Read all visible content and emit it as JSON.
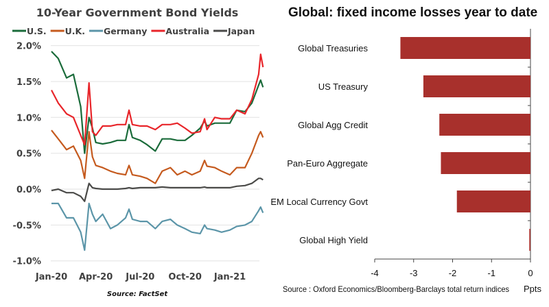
{
  "chart_data": [
    {
      "type": "line",
      "title": "10-Year Government Bond Yields",
      "source": "Source: FactSet",
      "ylim": [
        -1.0,
        2.0
      ],
      "yticks": [
        "2.0%",
        "1.5%",
        "1.0%",
        "0.5%",
        "0.0%",
        "-0.5%",
        "-1.0%"
      ],
      "ytick_values": [
        2.0,
        1.5,
        1.0,
        0.5,
        0.0,
        -0.5,
        -1.0
      ],
      "xticks": [
        "Jan-20",
        "Apr-20",
        "Jul-20",
        "Oct-20",
        "Jan-21"
      ],
      "xtick_values": [
        "2020-01-01",
        "2020-04-01",
        "2020-07-01",
        "2020-10-01",
        "2021-01-01"
      ],
      "grid": true,
      "legend": "top",
      "x": [
        "2020-01-01",
        "2020-01-15",
        "2020-02-01",
        "2020-02-15",
        "2020-03-01",
        "2020-03-09",
        "2020-03-18",
        "2020-03-25",
        "2020-04-01",
        "2020-04-15",
        "2020-05-01",
        "2020-05-15",
        "2020-06-01",
        "2020-06-08",
        "2020-06-15",
        "2020-07-01",
        "2020-07-15",
        "2020-08-01",
        "2020-08-15",
        "2020-09-01",
        "2020-09-15",
        "2020-10-01",
        "2020-10-15",
        "2020-11-01",
        "2020-11-10",
        "2020-11-15",
        "2020-12-01",
        "2020-12-15",
        "2021-01-01",
        "2021-01-15",
        "2021-02-01",
        "2021-02-15",
        "2021-03-01",
        "2021-03-05",
        "2021-03-10"
      ],
      "series": [
        {
          "name": "U.S.",
          "color": "#1a6b3a",
          "values": [
            1.92,
            1.82,
            1.55,
            1.6,
            1.15,
            0.5,
            1.0,
            0.85,
            0.65,
            0.63,
            0.65,
            0.68,
            0.68,
            0.9,
            0.72,
            0.68,
            0.62,
            0.53,
            0.7,
            0.7,
            0.68,
            0.68,
            0.75,
            0.85,
            0.95,
            0.88,
            0.92,
            0.92,
            0.92,
            1.1,
            1.08,
            1.2,
            1.45,
            1.52,
            1.42
          ]
        },
        {
          "name": "U.K.",
          "color": "#c55a1e",
          "values": [
            0.82,
            0.7,
            0.55,
            0.6,
            0.4,
            0.15,
            0.8,
            0.45,
            0.33,
            0.3,
            0.25,
            0.22,
            0.2,
            0.33,
            0.2,
            0.18,
            0.15,
            0.08,
            0.25,
            0.3,
            0.2,
            0.25,
            0.2,
            0.25,
            0.4,
            0.32,
            0.3,
            0.25,
            0.2,
            0.3,
            0.3,
            0.5,
            0.75,
            0.8,
            0.72
          ]
        },
        {
          "name": "Germany",
          "color": "#5b95a8",
          "values": [
            -0.2,
            -0.2,
            -0.4,
            -0.4,
            -0.6,
            -0.85,
            -0.2,
            -0.35,
            -0.45,
            -0.35,
            -0.55,
            -0.5,
            -0.4,
            -0.28,
            -0.42,
            -0.45,
            -0.45,
            -0.55,
            -0.45,
            -0.42,
            -0.5,
            -0.55,
            -0.6,
            -0.62,
            -0.5,
            -0.55,
            -0.57,
            -0.6,
            -0.57,
            -0.52,
            -0.5,
            -0.45,
            -0.3,
            -0.25,
            -0.33
          ]
        },
        {
          "name": "Australia",
          "color": "#e8252a",
          "values": [
            1.38,
            1.2,
            1.05,
            1.0,
            0.75,
            0.62,
            1.48,
            0.8,
            0.75,
            0.88,
            0.88,
            0.9,
            0.9,
            1.1,
            0.9,
            0.88,
            0.88,
            0.83,
            0.9,
            0.9,
            0.92,
            0.85,
            0.78,
            0.8,
            0.98,
            0.83,
            1.0,
            0.98,
            0.98,
            1.1,
            1.05,
            1.25,
            1.6,
            1.88,
            1.7
          ]
        },
        {
          "name": "Japan",
          "color": "#4a4a48",
          "values": [
            -0.02,
            0.0,
            -0.05,
            -0.05,
            -0.1,
            -0.17,
            0.08,
            0.02,
            0.01,
            0.0,
            0.0,
            0.0,
            0.01,
            0.02,
            0.01,
            0.02,
            0.02,
            0.02,
            0.03,
            0.02,
            0.02,
            0.02,
            0.02,
            0.02,
            0.03,
            0.02,
            0.02,
            0.02,
            0.02,
            0.04,
            0.05,
            0.08,
            0.15,
            0.15,
            0.13
          ]
        }
      ]
    },
    {
      "type": "bar",
      "orientation": "horizontal",
      "title": "Global: fixed income losses year to date",
      "categories": [
        "Global Treasuries",
        "US Treasury",
        "Global Agg Credit",
        "Pan-Euro Aggregate",
        "EM Local Currency Govt",
        "Global High Yield"
      ],
      "values": [
        -3.34,
        -2.75,
        -2.34,
        -2.3,
        -1.89,
        -0.03
      ],
      "xlim": [
        -4,
        0
      ],
      "xticks": [
        "-4",
        "-3",
        "-2",
        "-1",
        "0"
      ],
      "xlabel": "Ppts",
      "source": "Source : Oxford Economics/Bloomberg-Barclays total return indices",
      "color": "#a8302c"
    }
  ]
}
